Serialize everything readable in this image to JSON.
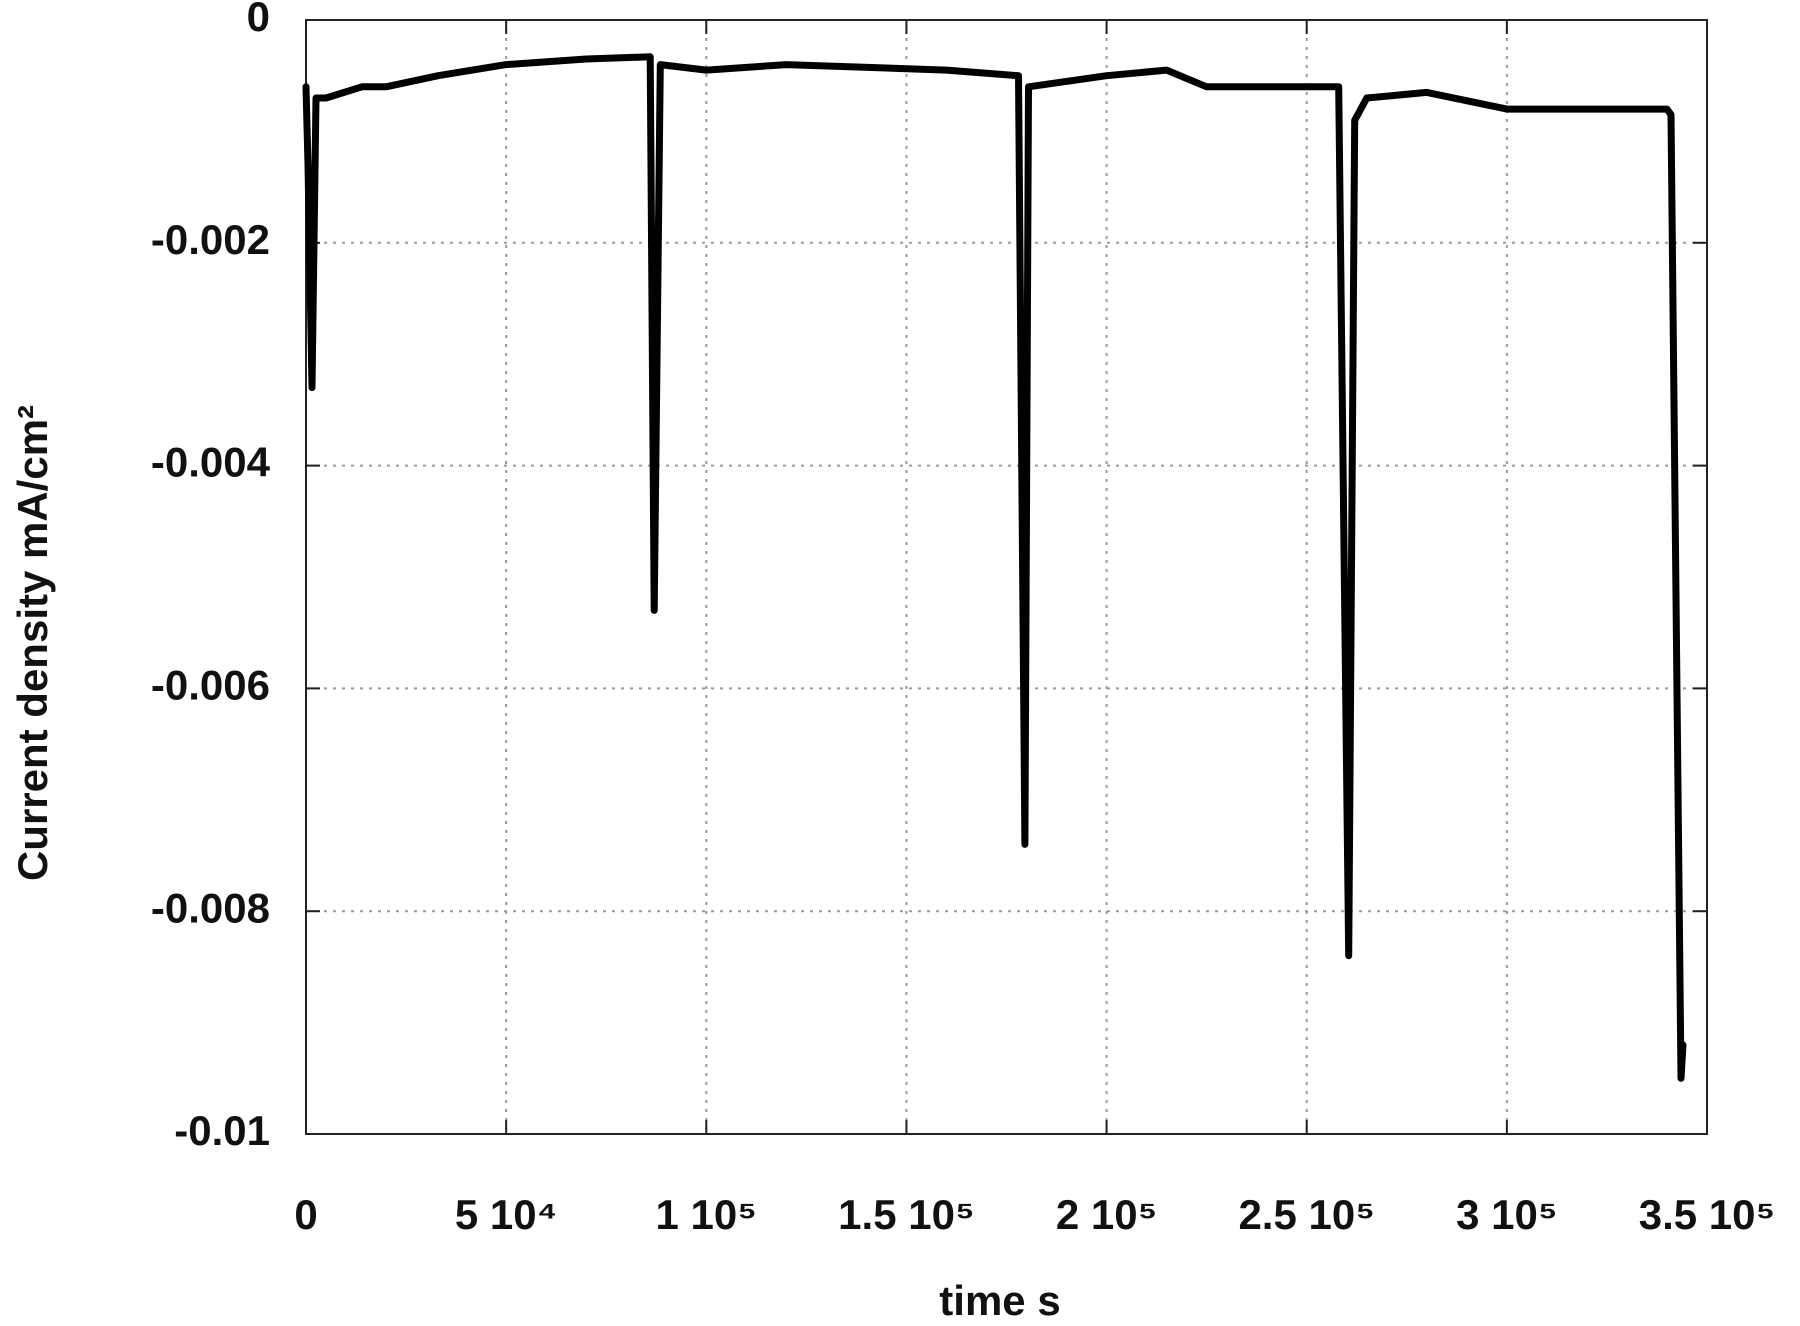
{
  "chart_data": {
    "type": "line",
    "xlabel": "time s",
    "ylabel": "Current density mA/cm²",
    "x": [
      0,
      500,
      1500,
      2500,
      5000,
      14000,
      20000,
      33000,
      50000,
      70000,
      86000,
      87000,
      88500,
      100000,
      120000,
      160000,
      178000,
      179600,
      180500,
      200000,
      215000,
      225000,
      240000,
      258000,
      260500,
      262000,
      265000,
      280000,
      300000,
      320000,
      340000,
      341000,
      343500,
      344000
    ],
    "values": [
      -0.0006,
      -0.0013,
      -0.0033,
      -0.0007,
      -0.0007,
      -0.0006,
      -0.0006,
      -0.0005,
      -0.0004,
      -0.00035,
      -0.00033,
      -0.0053,
      -0.0004,
      -0.00045,
      -0.0004,
      -0.00045,
      -0.0005,
      -0.0074,
      -0.0006,
      -0.0005,
      -0.00045,
      -0.0006,
      -0.0006,
      -0.0006,
      -0.0084,
      -0.0009,
      -0.0007,
      -0.00065,
      -0.0008,
      -0.0008,
      -0.0008,
      -0.00085,
      -0.0095,
      -0.0092
    ],
    "color": "#000000",
    "xlim": [
      0,
      350000
    ],
    "ylim": [
      -0.01,
      0
    ],
    "xticks": [
      0,
      {
        "value": 50000,
        "label": "5 10⁴"
      },
      {
        "value": 100000,
        "label": "1 10⁵"
      },
      {
        "value": 150000,
        "label": "1.5 10⁵"
      },
      {
        "value": 200000,
        "label": "2 10⁵"
      },
      {
        "value": 250000,
        "label": "2.5 10⁵"
      },
      {
        "value": 300000,
        "label": "3 10⁵"
      },
      {
        "value": 350000,
        "label": "3.5 10⁵"
      }
    ],
    "yticks": [
      0,
      -0.002,
      -0.004,
      -0.006,
      -0.008,
      -0.01
    ],
    "grid": true
  }
}
